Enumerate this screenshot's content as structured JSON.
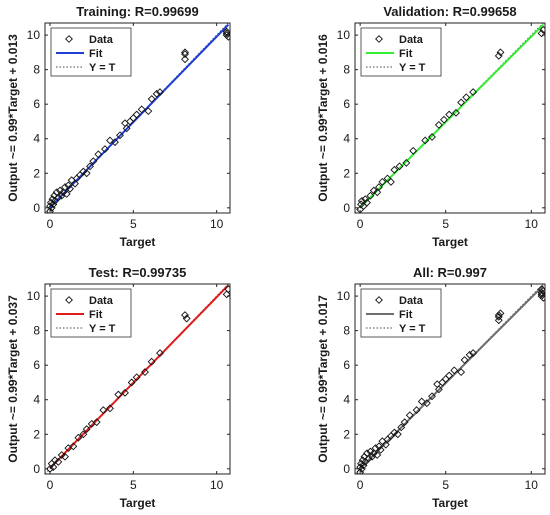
{
  "chart_data": [
    {
      "type": "scatter",
      "title": "Training: R=0.99699",
      "xlabel": "Target",
      "ylabel": "Output ~= 0.99*Target + 0.013",
      "xlim": [
        -0.3,
        10.8
      ],
      "ylim": [
        -0.3,
        10.7
      ],
      "xticks": [
        0,
        5,
        10
      ],
      "yticks": [
        0,
        2,
        4,
        6,
        8,
        10
      ],
      "fit": {
        "slope": 0.99,
        "intercept": 0.013,
        "color": "#1f3fd8"
      },
      "legend": {
        "placement": "top-left",
        "entries": [
          "Data",
          "Fit",
          "Y = T"
        ]
      },
      "points": [
        [
          0.0,
          -0.2
        ],
        [
          0.0,
          0.1
        ],
        [
          0.05,
          0.3
        ],
        [
          0.1,
          0.0
        ],
        [
          0.15,
          0.5
        ],
        [
          0.2,
          0.2
        ],
        [
          0.25,
          0.7
        ],
        [
          0.3,
          0.4
        ],
        [
          0.4,
          0.9
        ],
        [
          0.5,
          0.6
        ],
        [
          0.6,
          1.0
        ],
        [
          0.7,
          0.7
        ],
        [
          0.8,
          0.9
        ],
        [
          0.9,
          1.2
        ],
        [
          1.0,
          0.8
        ],
        [
          1.1,
          1.3
        ],
        [
          1.2,
          1.1
        ],
        [
          1.3,
          1.6
        ],
        [
          1.5,
          1.4
        ],
        [
          1.6,
          1.7
        ],
        [
          1.8,
          1.9
        ],
        [
          2.0,
          2.1
        ],
        [
          2.2,
          2.0
        ],
        [
          2.4,
          2.4
        ],
        [
          2.6,
          2.7
        ],
        [
          2.9,
          3.1
        ],
        [
          3.3,
          3.4
        ],
        [
          3.6,
          3.9
        ],
        [
          3.9,
          3.8
        ],
        [
          4.2,
          4.2
        ],
        [
          4.5,
          4.9
        ],
        [
          4.6,
          4.6
        ],
        [
          4.8,
          5.0
        ],
        [
          5.0,
          5.2
        ],
        [
          5.2,
          5.4
        ],
        [
          5.5,
          5.7
        ],
        [
          5.9,
          5.6
        ],
        [
          6.1,
          6.3
        ],
        [
          6.4,
          6.6
        ],
        [
          6.6,
          6.7
        ],
        [
          8.1,
          8.6
        ],
        [
          8.1,
          8.9
        ],
        [
          8.1,
          9.0
        ],
        [
          10.6,
          10.0
        ],
        [
          10.6,
          10.1
        ],
        [
          10.7,
          9.9
        ],
        [
          10.6,
          10.2
        ]
      ]
    },
    {
      "type": "scatter",
      "title": "Validation: R=0.99658",
      "xlabel": "Target",
      "ylabel": "Output ~= 0.99*Target + 0.016",
      "xlim": [
        -0.3,
        10.8
      ],
      "ylim": [
        -0.3,
        10.7
      ],
      "xticks": [
        0,
        5,
        10
      ],
      "yticks": [
        0,
        2,
        4,
        6,
        8,
        10
      ],
      "fit": {
        "slope": 0.99,
        "intercept": 0.016,
        "color": "#33ee33"
      },
      "legend": {
        "placement": "top-left",
        "entries": [
          "Data",
          "Fit",
          "Y = T"
        ]
      },
      "points": [
        [
          0.0,
          -0.1
        ],
        [
          0.05,
          0.2
        ],
        [
          0.1,
          0.4
        ],
        [
          0.2,
          0.1
        ],
        [
          0.3,
          0.5
        ],
        [
          0.4,
          0.3
        ],
        [
          0.6,
          0.7
        ],
        [
          0.8,
          1.0
        ],
        [
          1.0,
          0.9
        ],
        [
          1.1,
          1.2
        ],
        [
          1.3,
          1.5
        ],
        [
          1.6,
          1.7
        ],
        [
          1.8,
          1.5
        ],
        [
          2.0,
          2.2
        ],
        [
          2.3,
          2.4
        ],
        [
          2.7,
          2.6
        ],
        [
          3.1,
          3.3
        ],
        [
          3.8,
          3.9
        ],
        [
          4.2,
          4.1
        ],
        [
          4.6,
          4.8
        ],
        [
          4.9,
          5.1
        ],
        [
          5.2,
          5.4
        ],
        [
          5.6,
          5.5
        ],
        [
          5.9,
          6.1
        ],
        [
          6.2,
          6.4
        ],
        [
          6.6,
          6.7
        ],
        [
          8.1,
          8.8
        ],
        [
          8.2,
          9.0
        ],
        [
          10.6,
          10.1
        ],
        [
          10.7,
          10.3
        ]
      ]
    },
    {
      "type": "scatter",
      "title": "Test: R=0.99735",
      "xlabel": "Target",
      "ylabel": "Output ~= 0.99*Target + 0.037",
      "xlim": [
        -0.3,
        10.8
      ],
      "ylim": [
        -0.3,
        10.7
      ],
      "xticks": [
        0,
        5,
        10
      ],
      "yticks": [
        0,
        2,
        4,
        6,
        8,
        10
      ],
      "fit": {
        "slope": 0.99,
        "intercept": 0.037,
        "color": "#e01b1b"
      },
      "legend": {
        "placement": "top-left",
        "entries": [
          "Data",
          "Fit",
          "Y = T"
        ]
      },
      "points": [
        [
          0.0,
          0.0
        ],
        [
          0.1,
          0.3
        ],
        [
          0.2,
          0.1
        ],
        [
          0.3,
          0.5
        ],
        [
          0.5,
          0.4
        ],
        [
          0.7,
          0.8
        ],
        [
          0.9,
          0.7
        ],
        [
          1.1,
          1.2
        ],
        [
          1.4,
          1.3
        ],
        [
          1.7,
          1.8
        ],
        [
          2.0,
          2.0
        ],
        [
          2.2,
          2.3
        ],
        [
          2.5,
          2.6
        ],
        [
          2.8,
          2.7
        ],
        [
          3.2,
          3.4
        ],
        [
          3.6,
          3.5
        ],
        [
          4.1,
          4.3
        ],
        [
          4.5,
          4.4
        ],
        [
          4.9,
          5.0
        ],
        [
          5.2,
          5.3
        ],
        [
          5.7,
          5.6
        ],
        [
          6.1,
          6.2
        ],
        [
          6.6,
          6.7
        ],
        [
          8.1,
          8.9
        ],
        [
          8.2,
          8.7
        ],
        [
          10.6,
          10.1
        ],
        [
          10.7,
          10.4
        ]
      ]
    },
    {
      "type": "scatter",
      "title": "All: R=0.997",
      "xlabel": "Target",
      "ylabel": "Output ~= 0.99*Target + 0.017",
      "xlim": [
        -0.3,
        10.8
      ],
      "ylim": [
        -0.3,
        10.7
      ],
      "xticks": [
        0,
        5,
        10
      ],
      "yticks": [
        0,
        2,
        4,
        6,
        8,
        10
      ],
      "fit": {
        "slope": 0.99,
        "intercept": 0.017,
        "color": "#6e6e6e"
      },
      "legend": {
        "placement": "top-left",
        "entries": [
          "Data",
          "Fit",
          "Y = T"
        ]
      },
      "points": [
        [
          0.0,
          -0.2
        ],
        [
          0.0,
          0.1
        ],
        [
          0.05,
          0.3
        ],
        [
          0.1,
          0.0
        ],
        [
          0.15,
          0.5
        ],
        [
          0.2,
          0.2
        ],
        [
          0.25,
          0.7
        ],
        [
          0.3,
          0.4
        ],
        [
          0.4,
          0.9
        ],
        [
          0.5,
          0.6
        ],
        [
          0.6,
          1.0
        ],
        [
          0.7,
          0.7
        ],
        [
          0.8,
          0.9
        ],
        [
          0.9,
          1.2
        ],
        [
          1.0,
          0.8
        ],
        [
          1.1,
          1.3
        ],
        [
          1.2,
          1.1
        ],
        [
          1.3,
          1.6
        ],
        [
          1.5,
          1.4
        ],
        [
          1.6,
          1.7
        ],
        [
          1.8,
          1.9
        ],
        [
          2.0,
          2.1
        ],
        [
          2.2,
          2.0
        ],
        [
          2.4,
          2.4
        ],
        [
          2.6,
          2.7
        ],
        [
          2.9,
          3.1
        ],
        [
          3.3,
          3.4
        ],
        [
          3.6,
          3.9
        ],
        [
          3.9,
          3.8
        ],
        [
          4.2,
          4.2
        ],
        [
          4.5,
          4.9
        ],
        [
          4.6,
          4.6
        ],
        [
          4.8,
          5.0
        ],
        [
          5.0,
          5.2
        ],
        [
          5.2,
          5.4
        ],
        [
          5.5,
          5.7
        ],
        [
          5.9,
          5.6
        ],
        [
          6.1,
          6.3
        ],
        [
          6.4,
          6.6
        ],
        [
          6.6,
          6.7
        ],
        [
          8.1,
          8.6
        ],
        [
          8.1,
          8.9
        ],
        [
          8.2,
          9.0
        ],
        [
          8.1,
          8.8
        ],
        [
          10.6,
          10.0
        ],
        [
          10.6,
          10.1
        ],
        [
          10.7,
          9.9
        ],
        [
          10.6,
          10.2
        ],
        [
          10.7,
          10.3
        ],
        [
          10.6,
          10.4
        ]
      ]
    }
  ]
}
